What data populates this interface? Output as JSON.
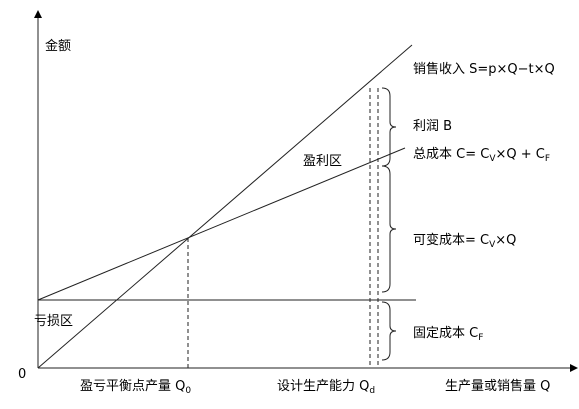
{
  "axis": {
    "y_label": "金额",
    "origin": "0",
    "x_label": "生产量或销售量 Q"
  },
  "regions": {
    "loss": "亏损区",
    "profit": "盈利区"
  },
  "x_marks": {
    "break_even": [
      {
        "text": "盈亏平衡点产量 Q"
      },
      {
        "text": "0",
        "sub": true
      }
    ],
    "capacity": [
      {
        "text": "设计生产能力 Q"
      },
      {
        "text": "d",
        "sub": true
      }
    ]
  },
  "line_labels": {
    "revenue": [
      {
        "text": "销售收入 S=p×Q−t×Q"
      }
    ],
    "total_cost": [
      {
        "text": "总成本 C= C"
      },
      {
        "text": "V",
        "sub": true
      },
      {
        "text": "×Q + C"
      },
      {
        "text": "F",
        "sub": true
      }
    ]
  },
  "brace_labels": {
    "profit": [
      {
        "text": "利润 B"
      }
    ],
    "variable_cost": [
      {
        "text": "可变成本= C"
      },
      {
        "text": "V",
        "sub": true
      },
      {
        "text": "×Q"
      }
    ],
    "fixed_cost": [
      {
        "text": "固定成本 C"
      },
      {
        "text": "F",
        "sub": true
      }
    ]
  }
}
